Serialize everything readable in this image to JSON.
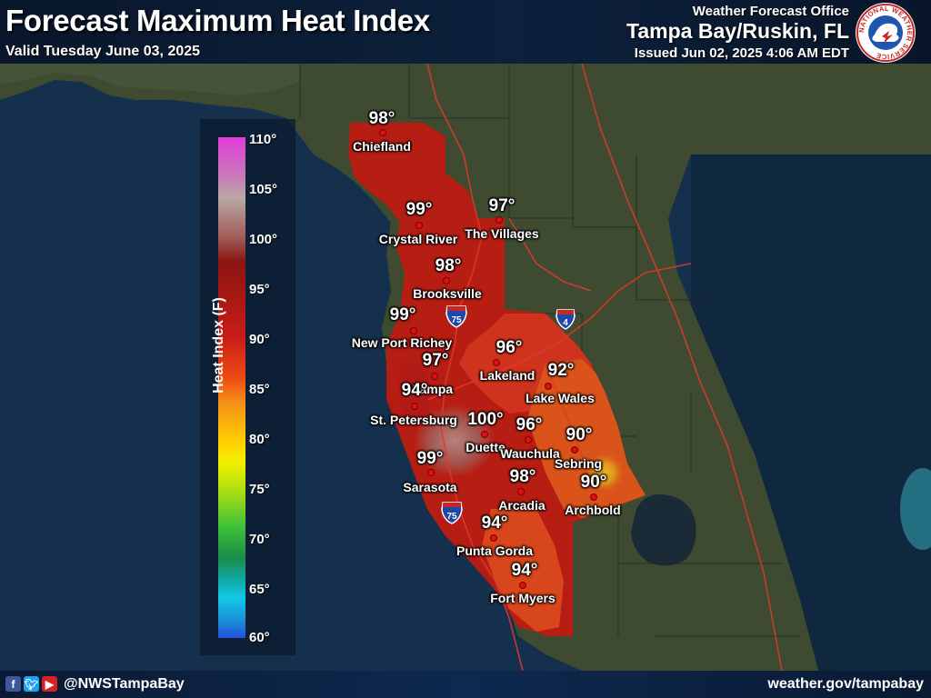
{
  "header": {
    "title": "Forecast Maximum Heat Index",
    "valid": "Valid Tuesday June 03, 2025",
    "office_label": "Weather Forecast Office",
    "office_name": "Tampa Bay/Ruskin, FL",
    "issued": "Issued Jun 02, 2025 4:06 AM EDT",
    "logo_text": "NATIONAL WEATHER SERVICE"
  },
  "legend": {
    "title": "Heat Index (F)",
    "ticks": [
      "110°",
      "105°",
      "100°",
      "95°",
      "90°",
      "85°",
      "80°",
      "75°",
      "70°",
      "65°",
      "60°"
    ],
    "colors": [
      "#e23cd8",
      "#b9a9a7",
      "#8b1410",
      "#c81d16",
      "#ef4a14",
      "#ffd000",
      "#a6dc12",
      "#3cc03a",
      "#1a8c48",
      "#12c8e6",
      "#244edc"
    ]
  },
  "interstates": [
    "75",
    "75",
    "4"
  ],
  "cities": [
    {
      "name": "Chiefland",
      "value": "98°"
    },
    {
      "name": "Crystal River",
      "value": "99°"
    },
    {
      "name": "The Villages",
      "value": "97°"
    },
    {
      "name": "Brooksville",
      "value": "98°"
    },
    {
      "name": "New Port Richey",
      "value": "99°"
    },
    {
      "name": "Lakeland",
      "value": "96°"
    },
    {
      "name": "Tampa",
      "value": "97°"
    },
    {
      "name": "Lake Wales",
      "value": "92°"
    },
    {
      "name": "St. Petersburg",
      "value": "94°"
    },
    {
      "name": "Duette",
      "value": "100°"
    },
    {
      "name": "Wauchula",
      "value": "96°"
    },
    {
      "name": "Sebring",
      "value": "90°"
    },
    {
      "name": "Sarasota",
      "value": "99°"
    },
    {
      "name": "Arcadia",
      "value": "98°"
    },
    {
      "name": "Archbold",
      "value": "90°"
    },
    {
      "name": "Punta Gorda",
      "value": "94°"
    },
    {
      "name": "Fort Myers",
      "value": "94°"
    }
  ],
  "footer": {
    "handle": "@NWSTampaBay",
    "website": "weather.gov/tampabay",
    "social_icons": [
      "facebook-icon",
      "twitter-icon",
      "youtube-icon"
    ]
  }
}
